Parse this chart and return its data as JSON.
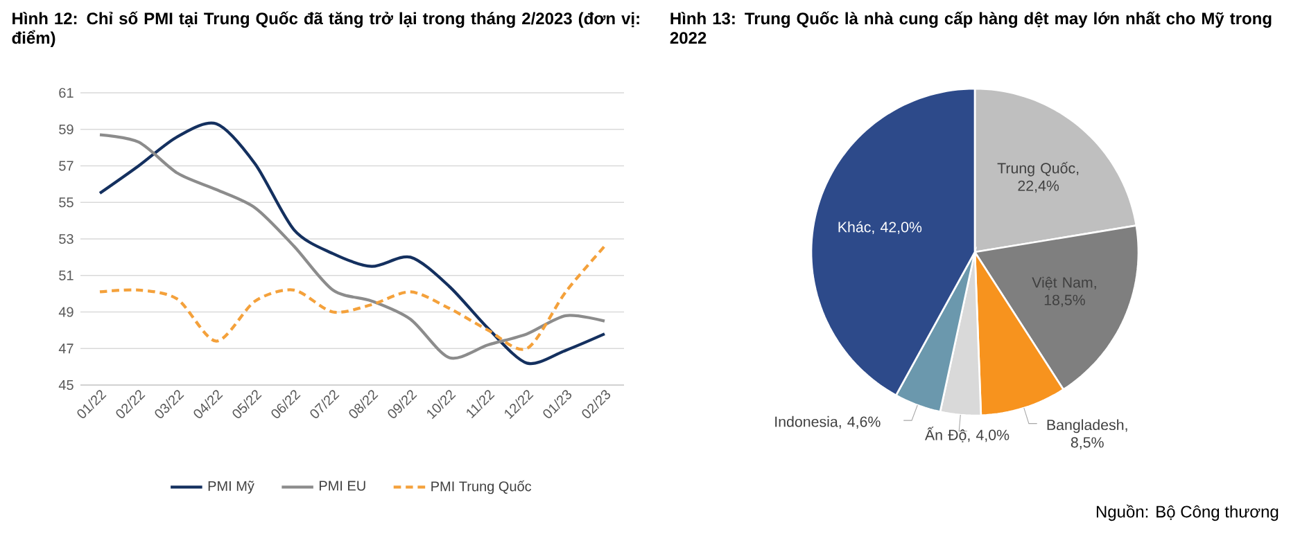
{
  "chart_data": [
    {
      "type": "line",
      "title": "Hình 12: Chỉ số PMI tại Trung Quốc đã tăng trở lại trong tháng 2/2023 (đơn vị: điểm)",
      "categories": [
        "01/22",
        "02/22",
        "03/22",
        "04/22",
        "05/22",
        "06/22",
        "07/22",
        "08/22",
        "09/22",
        "10/22",
        "11/22",
        "12/22",
        "01/23",
        "02/23"
      ],
      "series": [
        {
          "name": "PMI Mỹ",
          "color": "#14305f",
          "line_style": "solid",
          "values": [
            55.5,
            57.0,
            58.6,
            59.3,
            57.1,
            53.5,
            52.2,
            51.5,
            52.0,
            50.4,
            48.1,
            46.2,
            46.9,
            47.8
          ]
        },
        {
          "name": "PMI EU",
          "color": "#8c8c8c",
          "line_style": "solid",
          "values": [
            58.7,
            58.3,
            56.6,
            55.7,
            54.7,
            52.6,
            50.2,
            49.6,
            48.6,
            46.5,
            47.2,
            47.8,
            48.8,
            48.5
          ]
        },
        {
          "name": "PMI Trung Quốc",
          "color": "#f4a13b",
          "line_style": "dashed",
          "values": [
            50.1,
            50.2,
            49.7,
            47.4,
            49.6,
            50.2,
            49.0,
            49.4,
            50.1,
            49.2,
            48.0,
            47.0,
            50.1,
            52.6
          ]
        }
      ],
      "ylim": [
        45,
        61
      ],
      "yticks": [
        45,
        47,
        49,
        51,
        53,
        55,
        57,
        59,
        61
      ],
      "grid": "y",
      "legend": "bottom"
    },
    {
      "type": "pie",
      "title": "Hình 13: Trung Quốc là nhà cung cấp hàng dệt may lớn nhất cho Mỹ trong 2022",
      "categories": [
        null,
        null,
        null,
        null,
        null,
        null
      ],
      "values": [
        22.4,
        18.5,
        8.5,
        4.0,
        4.6,
        42.0
      ],
      "value_labels": [
        "Trung Quốc, 22,4%",
        "Việt Nam, 18,5%",
        "Bangladesh, 8,5%",
        "Ấn Độ, 4,0%",
        "Indonesia, 4,6%",
        "Khác, 42,0%"
      ],
      "colors": [
        "#bfbfbf",
        "#7f7f7f",
        "#f7931e",
        "#d9d9d9",
        "#6b98ad",
        "#2d4a8a"
      ],
      "annotations": [
        "Nguồn: Bộ Công thương"
      ]
    }
  ]
}
